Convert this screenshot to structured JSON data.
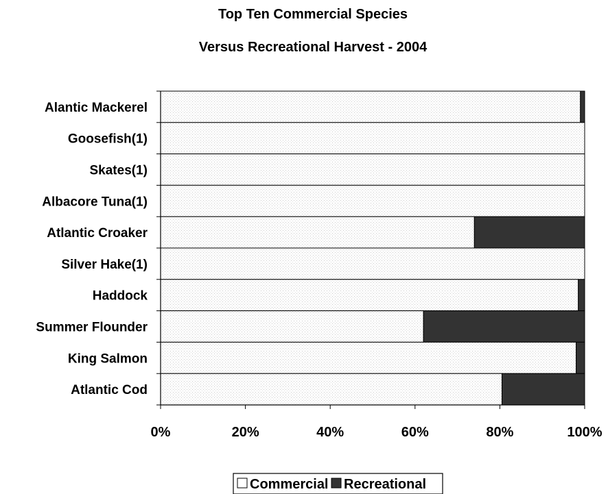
{
  "chart_data": {
    "type": "bar",
    "orientation": "horizontal",
    "stacked": "percent",
    "title": "Top Ten Commercial Species",
    "subtitle": "Versus Recreational Harvest - 2004",
    "xlabel": "",
    "ylabel": "",
    "xlim": [
      0,
      100
    ],
    "x_ticks": [
      "0%",
      "20%",
      "40%",
      "60%",
      "80%",
      "100%"
    ],
    "grid": false,
    "legend_position": "bottom",
    "categories": [
      "Alantic Mackerel",
      "Goosefish(1)",
      "Skates(1)",
      "Albacore Tuna(1)",
      "Atlantic Croaker",
      "Silver Hake(1)",
      "Haddock",
      "Summer Flounder",
      "King Salmon",
      "Atlantic Cod"
    ],
    "series": [
      {
        "name": "Commercial",
        "color": "#ffffff",
        "pattern": "light-dotted",
        "values": [
          99,
          100,
          100,
          100,
          74,
          100,
          98.5,
          62,
          98,
          80.5
        ]
      },
      {
        "name": "Recreational",
        "color": "#333333",
        "values": [
          1,
          0,
          0,
          0,
          26,
          0,
          1.5,
          38,
          2,
          19.5
        ]
      }
    ]
  }
}
